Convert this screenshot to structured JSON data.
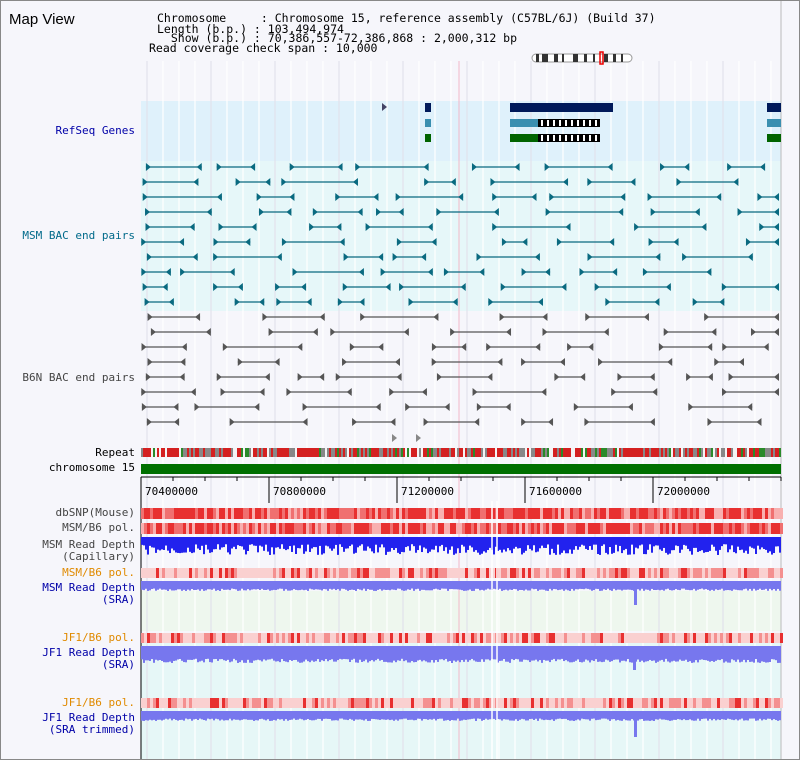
{
  "window": {
    "title": "Map View"
  },
  "info": {
    "chromosome_line": "Chromosome     : Chromosome 15, reference assembly (C57BL/6J) (Build 37)",
    "length_line": "Length (b.p.) : 103,494,974",
    "show_line": "  Show (b.p.) : 70,386,557-72,386,868 : 2,000,312 bp",
    "span_line": "Read coverage check span : 10,000"
  },
  "tracks": {
    "refseq": "RefSeq Genes",
    "msm_bac": "MSM BAC end pairs",
    "b6n_bac": "B6N BAC end pairs",
    "repeat": "Repeat",
    "chrom": "chromosome 15",
    "dbsnp": "dbSNP(Mouse)",
    "msm_pol": "MSM/B6 pol.",
    "msm_depth_cap_1": "MSM Read Depth",
    "msm_depth_cap_2": "(Capillary)",
    "msm_pol2": "MSM/B6 pol.",
    "msm_depth_sra_1": "MSM Read Depth",
    "msm_depth_sra_2": "(SRA)",
    "jf1_pol": "JF1/B6 pol.",
    "jf1_depth_1": "JF1 Read Depth",
    "jf1_depth_2": "(SRA)",
    "jf1_pol2": "JF1/B6 pol.",
    "jf1_trim_1": "JF1 Read Depth",
    "jf1_trim_2": "(SRA trimmed)"
  },
  "axis": {
    "ticks": [
      "70400000",
      "70800000",
      "71200000",
      "71600000",
      "72000000"
    ]
  },
  "colors": {
    "refseq_bg": "#dff1fb",
    "msm_bg": "#e6f7f9",
    "navy": "#001a5a",
    "teal_gene": "#3a8fb0",
    "green": "#006400",
    "msm_feat": "#0a6a80",
    "b6n_feat": "#555555",
    "depth_blue": "#2222ee",
    "depth_light": "#7777ee"
  },
  "icons": {
    "chromosome_ideogram": "chromosome-ideogram-icon"
  }
}
